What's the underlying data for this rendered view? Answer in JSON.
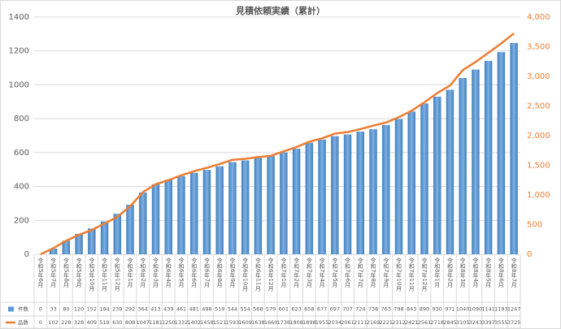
{
  "chart_data": {
    "type": "bar_line",
    "title": "見積依頼実績（累計）",
    "categories": [
      "令和5年6月",
      "令和5年7月",
      "令和5年8月",
      "令和5年9月",
      "令和5年10月",
      "令和5年11月",
      "令和5年12月",
      "令和6年1月",
      "令和6年2月",
      "令和6年3月",
      "令和6年4月",
      "令和6年5月",
      "令和6年6月",
      "令和6年7月",
      "令和6年8月",
      "令和6年9月",
      "令和6年10月",
      "令和6年11月",
      "令和6年12月",
      "令和7年1月",
      "令和7年2月",
      "令和7年3月",
      "令和7年4月",
      "令和7年5月",
      "令和7年6月",
      "令和7年7月",
      "令和7年8月",
      "令和7年9月",
      "令和7年10月",
      "令和7年11月",
      "令和7年12月",
      "令和8年1月",
      "令和8年2月",
      "令和8年3月",
      "令和8年4月",
      "令和8年5月",
      "令和8年6月",
      "令和8年7月"
    ],
    "series": [
      {
        "name": "件数",
        "color": "#5b9bd5",
        "type": "bar",
        "axis": "y",
        "values": [
          0,
          33,
          80,
          120,
          152,
          194,
          239,
          292,
          364,
          413,
          439,
          461,
          481,
          498,
          519,
          544,
          554,
          568,
          579,
          601,
          623,
          658,
          677,
          697,
          707,
          724,
          738,
          763,
          798,
          843,
          890,
          930,
          971,
          1040,
          1090,
          1141,
          1193,
          1247
        ]
      },
      {
        "name": "品数",
        "color": "#ed7d31",
        "type": "line",
        "axis": "y2",
        "values": [
          0,
          102,
          228,
          328,
          409,
          518,
          630,
          808,
          1047,
          1181,
          1250,
          1332,
          1402,
          1458,
          1521,
          1593,
          1609,
          1638,
          1660,
          1736,
          1808,
          1898,
          1955,
          2034,
          2061,
          2111,
          2169,
          2221,
          2312,
          2421,
          2561,
          2718,
          2845,
          3105,
          3243,
          3397,
          3555,
          3725
        ]
      }
    ],
    "ylim": [
      0,
      1400
    ],
    "yticks": [
      0,
      200,
      400,
      600,
      800,
      1000,
      1200,
      1400
    ],
    "y2lim": [
      0,
      4000
    ],
    "y2ticks": [
      0,
      500,
      {
        "value": 1000,
        "label": "1,000"
      },
      {
        "value": 1500,
        "label": "1,500"
      },
      {
        "value": 2000,
        "label": "2,000"
      },
      {
        "value": 2500,
        "label": "2,500"
      },
      {
        "value": 3000,
        "label": "3,000"
      },
      {
        "value": 3500,
        "label": "3,500"
      },
      {
        "value": 4000,
        "label": "4,000"
      }
    ],
    "grid": true
  }
}
